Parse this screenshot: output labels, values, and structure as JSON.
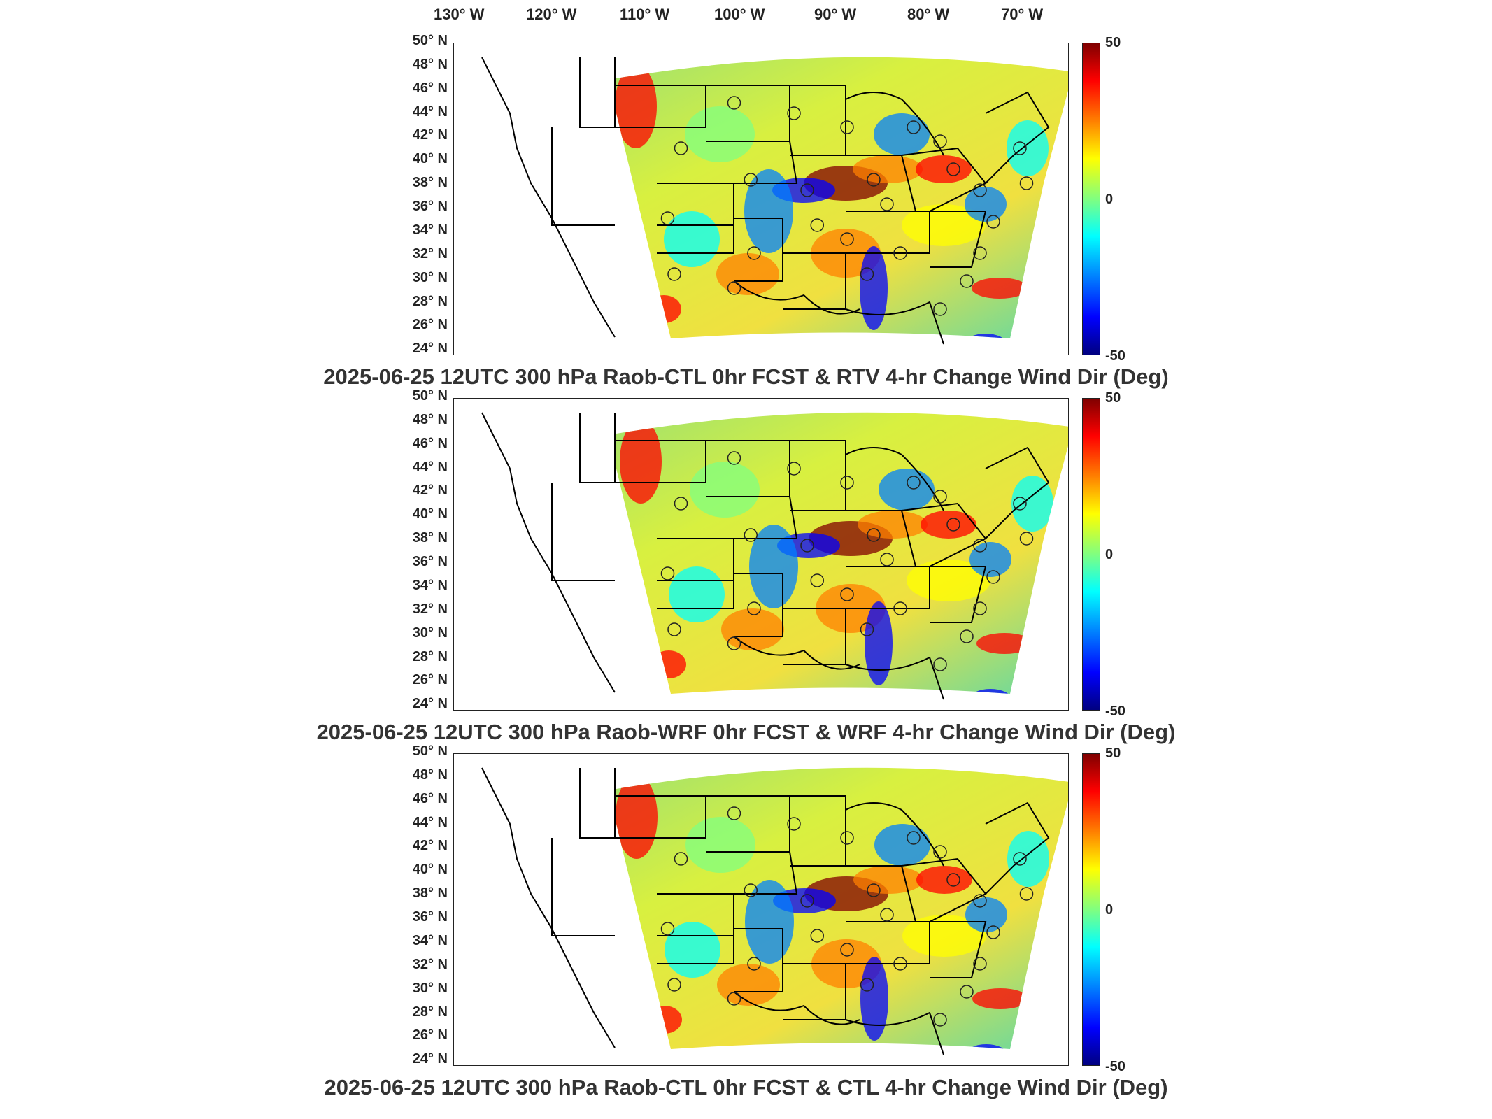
{
  "lon_labels": [
    "130° W",
    "120° W",
    "110° W",
    "100° W",
    "90° W",
    "80° W",
    "70° W"
  ],
  "lat_labels": [
    "50° N",
    "48° N",
    "46° N",
    "44° N",
    "42° N",
    "40° N",
    "38° N",
    "36° N",
    "34° N",
    "32° N",
    "30° N",
    "28° N",
    "26° N",
    "24° N"
  ],
  "colorbar": {
    "max_label": "50",
    "mid_label": "0",
    "min_label": "-50",
    "colors": [
      "#800000",
      "#ff0000",
      "#ff8000",
      "#ffff00",
      "#80ff80",
      "#00ffff",
      "#0080ff",
      "#0000ff",
      "#000080"
    ]
  },
  "panels": [
    {
      "title": "2025-06-25 12UTC 300 hPa Raob-CTL 0hr FCST & RTV 4-hr Change Wind Dir (Deg)"
    },
    {
      "title": "2025-06-25 12UTC 300 hPa Raob-WRF 0hr FCST & WRF 4-hr Change Wind Dir (Deg)"
    },
    {
      "title": "2025-06-25 12UTC 300 hPa Raob-CTL 0hr FCST & CTL 4-hr Change Wind Dir (Deg)"
    }
  ]
}
